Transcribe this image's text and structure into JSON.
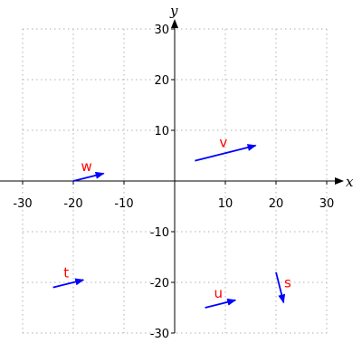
{
  "chart_data": {
    "type": "vector-plot",
    "xlabel": "x",
    "ylabel": "y",
    "xlim": [
      -30,
      30
    ],
    "ylim": [
      -30,
      30
    ],
    "xticks": [
      -30,
      -20,
      -10,
      10,
      20,
      30
    ],
    "yticks": [
      -30,
      -20,
      -10,
      10,
      20,
      30
    ],
    "grid": true,
    "vector_color": "#0000ff",
    "label_color": "#ff0000",
    "vectors": [
      {
        "label": "v",
        "start": [
          4,
          4
        ],
        "end": [
          16,
          7
        ]
      },
      {
        "label": "w",
        "start": [
          -20,
          0
        ],
        "end": [
          -14,
          1.5
        ]
      },
      {
        "label": "t",
        "start": [
          -24,
          -21
        ],
        "end": [
          -18,
          -19.5
        ]
      },
      {
        "label": "u",
        "start": [
          6,
          -25
        ],
        "end": [
          12,
          -23.5
        ]
      },
      {
        "label": "s",
        "start": [
          20,
          -18
        ],
        "end": [
          21.5,
          -24
        ]
      }
    ]
  }
}
